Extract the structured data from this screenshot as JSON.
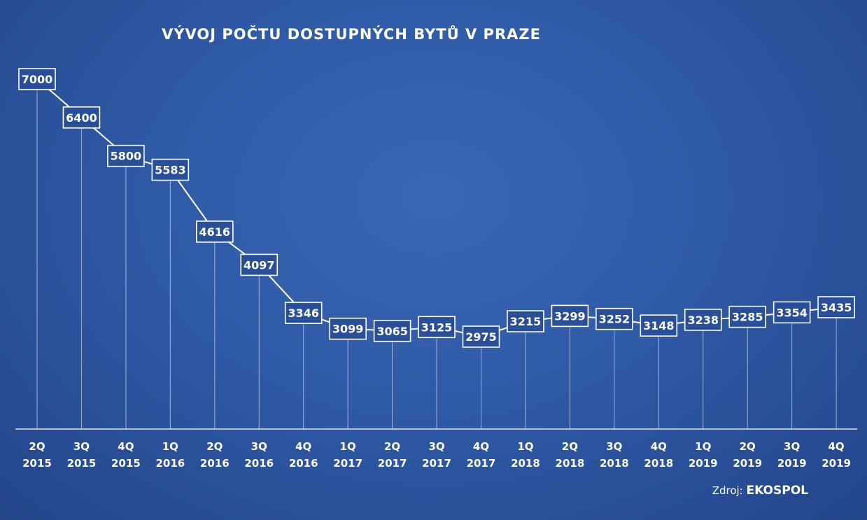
{
  "chart_data": {
    "type": "line",
    "title": "VÝVOJ POČTU  DOSTUPNÝCH BYTŮ V PRAZE",
    "categories": [
      [
        "2Q",
        "2015"
      ],
      [
        "3Q",
        "2015"
      ],
      [
        "4Q",
        "2015"
      ],
      [
        "1Q",
        "2016"
      ],
      [
        "2Q",
        "2016"
      ],
      [
        "3Q",
        "2016"
      ],
      [
        "4Q",
        "2016"
      ],
      [
        "1Q",
        "2017"
      ],
      [
        "2Q",
        "2017"
      ],
      [
        "3Q",
        "2017"
      ],
      [
        "4Q",
        "2017"
      ],
      [
        "1Q",
        "2018"
      ],
      [
        "2Q",
        "2018"
      ],
      [
        "3Q",
        "2018"
      ],
      [
        "4Q",
        "2018"
      ],
      [
        "1Q",
        "2019"
      ],
      [
        "2Q",
        "2019"
      ],
      [
        "3Q",
        "2019"
      ],
      [
        "4Q",
        "2019"
      ]
    ],
    "values": [
      7000,
      6400,
      5800,
      5583,
      4616,
      4097,
      3346,
      3099,
      3065,
      3125,
      2975,
      3215,
      3299,
      3252,
      3148,
      3238,
      3285,
      3354,
      3435
    ],
    "xlabel": "",
    "ylabel": "",
    "ylim": [
      0,
      7000
    ],
    "grid": false,
    "line_color": "#ffffff",
    "label_box_color": "#2a4f9a"
  },
  "source": {
    "prefix": "Zdroj:",
    "name": "EKOSPOL"
  }
}
